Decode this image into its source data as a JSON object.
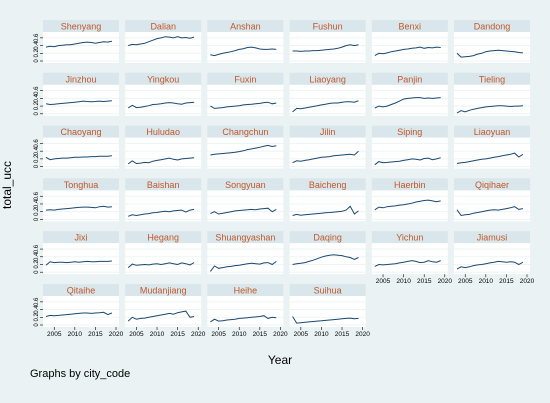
{
  "chart_data": {
    "type": "line",
    "title": "",
    "xlabel": "Year",
    "ylabel": "total_ucc",
    "note": "Graphs by city_code",
    "xlim": [
      2003,
      2020
    ],
    "ylim": [
      0,
      0.7
    ],
    "x_ticks": [
      2005,
      2010,
      2015,
      2020
    ],
    "y_ticks": [
      "0",
      "0.2",
      "0.4",
      "0.6"
    ],
    "x": [
      2003,
      2004,
      2005,
      2006,
      2007,
      2008,
      2009,
      2010,
      2011,
      2012,
      2013,
      2014,
      2015,
      2016,
      2017,
      2018,
      2019
    ],
    "line_color": "#1a476f",
    "strip_color": "#d9e6eb",
    "strip_text_color": "#c0582b",
    "panels": [
      {
        "name": "Shenyang",
        "values": [
          0.36,
          0.38,
          0.37,
          0.4,
          0.41,
          0.42,
          0.42,
          0.44,
          0.46,
          0.48,
          0.49,
          0.48,
          0.46,
          0.48,
          0.5,
          0.49,
          0.51
        ]
      },
      {
        "name": "Dalian",
        "values": [
          0.4,
          0.43,
          0.42,
          0.44,
          0.46,
          0.5,
          0.54,
          0.58,
          0.6,
          0.63,
          0.62,
          0.6,
          0.63,
          0.6,
          0.61,
          0.59,
          0.62
        ]
      },
      {
        "name": "Anshan",
        "values": [
          0.16,
          0.14,
          0.17,
          0.2,
          0.22,
          0.24,
          0.27,
          0.3,
          0.32,
          0.35,
          0.36,
          0.34,
          0.31,
          0.3,
          0.3,
          0.31,
          0.3
        ]
      },
      {
        "name": "Fushun",
        "values": [
          0.26,
          0.26,
          0.25,
          0.26,
          0.26,
          0.27,
          0.27,
          0.28,
          0.29,
          0.3,
          0.31,
          0.33,
          0.36,
          0.4,
          0.42,
          0.4,
          0.42
        ]
      },
      {
        "name": "Benxi",
        "values": [
          0.14,
          0.2,
          0.19,
          0.21,
          0.24,
          0.26,
          0.28,
          0.3,
          0.31,
          0.33,
          0.34,
          0.36,
          0.33,
          0.35,
          0.34,
          0.36,
          0.35
        ]
      },
      {
        "name": "Dandong",
        "values": [
          0.2,
          0.1,
          0.11,
          0.12,
          0.14,
          0.18,
          0.2,
          0.24,
          0.26,
          0.27,
          0.28,
          0.27,
          0.26,
          0.25,
          0.24,
          0.22,
          0.21
        ]
      },
      {
        "name": "Jinzhou",
        "values": [
          0.26,
          0.24,
          0.25,
          0.26,
          0.27,
          0.28,
          0.29,
          0.3,
          0.31,
          0.33,
          0.32,
          0.31,
          0.32,
          0.33,
          0.32,
          0.33,
          0.34
        ]
      },
      {
        "name": "Yingkou",
        "values": [
          0.15,
          0.22,
          0.16,
          0.17,
          0.19,
          0.21,
          0.24,
          0.25,
          0.26,
          0.28,
          0.29,
          0.28,
          0.26,
          0.25,
          0.28,
          0.29,
          0.3
        ]
      },
      {
        "name": "Fuxin",
        "values": [
          0.2,
          0.14,
          0.15,
          0.16,
          0.18,
          0.19,
          0.2,
          0.21,
          0.23,
          0.24,
          0.25,
          0.26,
          0.27,
          0.29,
          0.3,
          0.26,
          0.28
        ]
      },
      {
        "name": "Liaoyang",
        "values": [
          0.05,
          0.14,
          0.13,
          0.15,
          0.17,
          0.19,
          0.21,
          0.23,
          0.25,
          0.27,
          0.28,
          0.28,
          0.3,
          0.31,
          0.31,
          0.3,
          0.34
        ]
      },
      {
        "name": "Panjin",
        "values": [
          0.15,
          0.2,
          0.18,
          0.2,
          0.24,
          0.28,
          0.33,
          0.38,
          0.4,
          0.41,
          0.42,
          0.42,
          0.4,
          0.41,
          0.4,
          0.41,
          0.42
        ]
      },
      {
        "name": "Tieling",
        "values": [
          0.02,
          0.08,
          0.05,
          0.09,
          0.12,
          0.14,
          0.16,
          0.18,
          0.19,
          0.2,
          0.21,
          0.21,
          0.2,
          0.19,
          0.2,
          0.2,
          0.21
        ]
      },
      {
        "name": "Chaoyang",
        "values": [
          0.24,
          0.18,
          0.2,
          0.21,
          0.22,
          0.22,
          0.23,
          0.24,
          0.24,
          0.25,
          0.25,
          0.26,
          0.26,
          0.27,
          0.27,
          0.27,
          0.28
        ]
      },
      {
        "name": "Huludao",
        "values": [
          0.07,
          0.15,
          0.08,
          0.09,
          0.11,
          0.1,
          0.14,
          0.16,
          0.18,
          0.2,
          0.22,
          0.19,
          0.17,
          0.2,
          0.21,
          0.22,
          0.23
        ]
      },
      {
        "name": "Changchun",
        "values": [
          0.3,
          0.32,
          0.33,
          0.34,
          0.35,
          0.36,
          0.37,
          0.39,
          0.41,
          0.44,
          0.46,
          0.48,
          0.5,
          0.53,
          0.55,
          0.52,
          0.54
        ]
      },
      {
        "name": "Jilin",
        "values": [
          0.1,
          0.15,
          0.14,
          0.16,
          0.18,
          0.2,
          0.22,
          0.24,
          0.25,
          0.26,
          0.28,
          0.29,
          0.3,
          0.31,
          0.32,
          0.3,
          0.4
        ]
      },
      {
        "name": "Siping",
        "values": [
          0.05,
          0.13,
          0.1,
          0.11,
          0.12,
          0.13,
          0.14,
          0.16,
          0.18,
          0.2,
          0.19,
          0.17,
          0.21,
          0.22,
          0.18,
          0.2,
          0.23
        ]
      },
      {
        "name": "Liaoyuan",
        "values": [
          0.08,
          0.1,
          0.11,
          0.13,
          0.15,
          0.17,
          0.19,
          0.2,
          0.22,
          0.24,
          0.26,
          0.28,
          0.3,
          0.32,
          0.35,
          0.25,
          0.32
        ]
      },
      {
        "name": "Tonghua",
        "values": [
          0.24,
          0.25,
          0.24,
          0.26,
          0.27,
          0.28,
          0.29,
          0.3,
          0.31,
          0.32,
          0.32,
          0.31,
          0.3,
          0.33,
          0.34,
          0.32,
          0.33
        ]
      },
      {
        "name": "Baishan",
        "values": [
          0.08,
          0.12,
          0.1,
          0.12,
          0.14,
          0.15,
          0.17,
          0.18,
          0.2,
          0.21,
          0.2,
          0.22,
          0.23,
          0.24,
          0.19,
          0.24,
          0.26
        ]
      },
      {
        "name": "Songyuan",
        "values": [
          0.15,
          0.2,
          0.14,
          0.16,
          0.18,
          0.2,
          0.22,
          0.23,
          0.24,
          0.25,
          0.26,
          0.25,
          0.27,
          0.28,
          0.29,
          0.2,
          0.26
        ]
      },
      {
        "name": "Baicheng",
        "values": [
          0.1,
          0.13,
          0.11,
          0.12,
          0.13,
          0.14,
          0.15,
          0.16,
          0.17,
          0.18,
          0.19,
          0.2,
          0.21,
          0.24,
          0.34,
          0.14,
          0.22
        ]
      },
      {
        "name": "Haerbin",
        "values": [
          0.25,
          0.32,
          0.3,
          0.33,
          0.34,
          0.35,
          0.37,
          0.38,
          0.4,
          0.42,
          0.45,
          0.47,
          0.49,
          0.5,
          0.48,
          0.46,
          0.48
        ]
      },
      {
        "name": "Qiqihaer",
        "values": [
          0.25,
          0.1,
          0.12,
          0.13,
          0.16,
          0.18,
          0.2,
          0.22,
          0.24,
          0.25,
          0.24,
          0.26,
          0.28,
          0.3,
          0.33,
          0.26,
          0.28
        ]
      },
      {
        "name": "Jixi",
        "values": [
          0.18,
          0.27,
          0.25,
          0.26,
          0.26,
          0.25,
          0.26,
          0.27,
          0.26,
          0.27,
          0.28,
          0.27,
          0.27,
          0.28,
          0.28,
          0.28,
          0.29
        ]
      },
      {
        "name": "Hegang",
        "values": [
          0.12,
          0.21,
          0.18,
          0.19,
          0.2,
          0.19,
          0.21,
          0.22,
          0.2,
          0.22,
          0.24,
          0.22,
          0.2,
          0.24,
          0.22,
          0.19,
          0.25
        ]
      },
      {
        "name": "Shuangyashan",
        "values": [
          0.02,
          0.16,
          0.1,
          0.12,
          0.14,
          0.15,
          0.17,
          0.18,
          0.2,
          0.22,
          0.23,
          0.22,
          0.21,
          0.24,
          0.25,
          0.2,
          0.28
        ]
      },
      {
        "name": "Daqing",
        "values": [
          0.2,
          0.22,
          0.23,
          0.25,
          0.28,
          0.31,
          0.35,
          0.39,
          0.42,
          0.44,
          0.45,
          0.44,
          0.43,
          0.4,
          0.38,
          0.33,
          0.38
        ]
      },
      {
        "name": "Yichun",
        "values": [
          0.15,
          0.2,
          0.19,
          0.2,
          0.21,
          0.22,
          0.24,
          0.26,
          0.28,
          0.3,
          0.28,
          0.25,
          0.26,
          0.3,
          0.27,
          0.26,
          0.3
        ]
      },
      {
        "name": "Jiamusi",
        "values": [
          0.08,
          0.14,
          0.12,
          0.14,
          0.17,
          0.19,
          0.2,
          0.22,
          0.24,
          0.26,
          0.28,
          0.27,
          0.26,
          0.27,
          0.26,
          0.2,
          0.26
        ]
      },
      {
        "name": "Qitaihe",
        "values": [
          0.22,
          0.25,
          0.24,
          0.25,
          0.26,
          0.27,
          0.28,
          0.29,
          0.3,
          0.31,
          0.31,
          0.3,
          0.31,
          0.32,
          0.33,
          0.27,
          0.31
        ]
      },
      {
        "name": "Mudanjiang",
        "values": [
          0.1,
          0.2,
          0.15,
          0.17,
          0.18,
          0.2,
          0.22,
          0.24,
          0.26,
          0.28,
          0.3,
          0.28,
          0.32,
          0.34,
          0.36,
          0.2,
          0.22
        ]
      },
      {
        "name": "Heihe",
        "values": [
          0.08,
          0.15,
          0.1,
          0.11,
          0.13,
          0.14,
          0.15,
          0.17,
          0.18,
          0.19,
          0.2,
          0.21,
          0.22,
          0.24,
          0.17,
          0.2,
          0.19
        ]
      },
      {
        "name": "Suihua",
        "values": [
          0.22,
          0.05,
          0.06,
          0.07,
          0.08,
          0.09,
          0.1,
          0.11,
          0.12,
          0.13,
          0.14,
          0.15,
          0.16,
          0.17,
          0.18,
          0.16,
          0.17
        ]
      }
    ]
  }
}
